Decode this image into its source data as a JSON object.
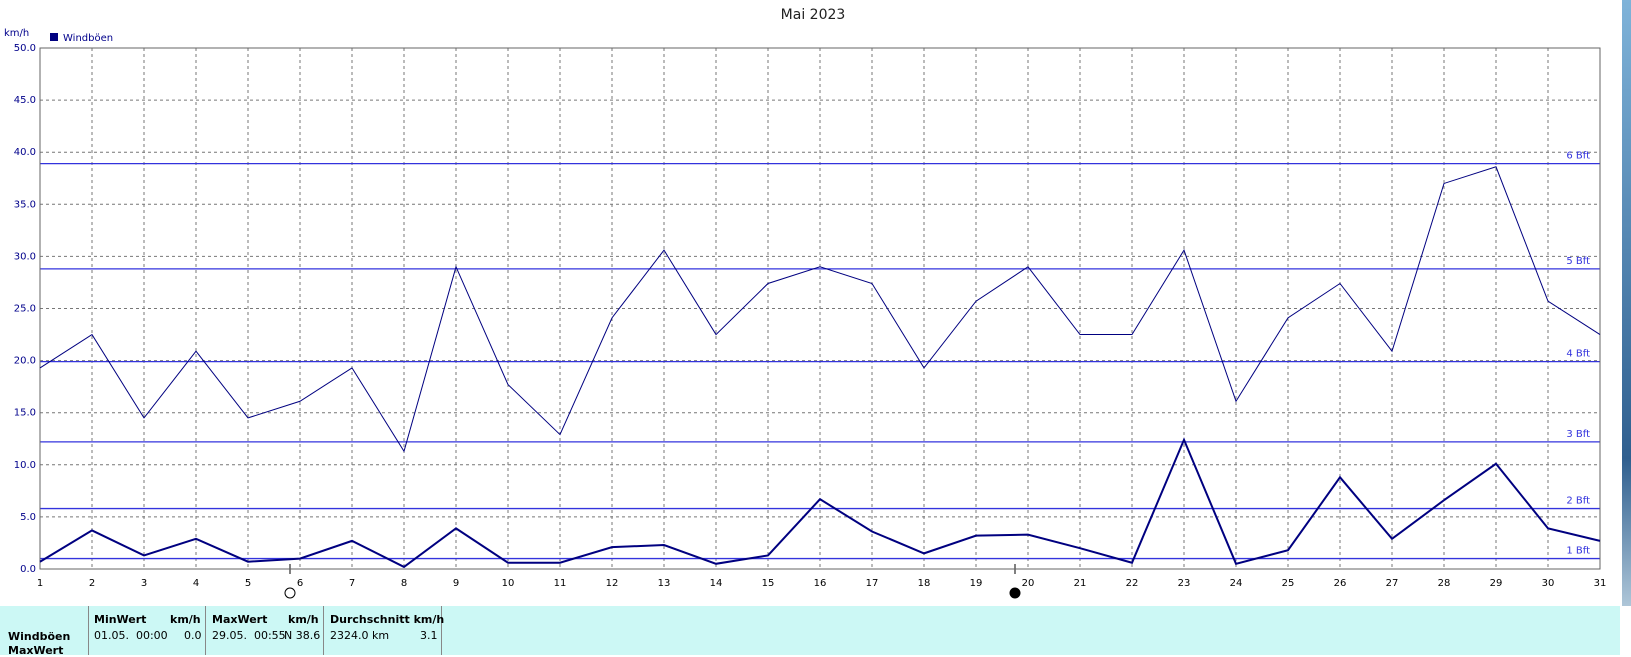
{
  "chart_data": {
    "type": "line",
    "title": "Mai 2023",
    "y_label": "km/h",
    "x": [
      1,
      2,
      3,
      4,
      5,
      6,
      7,
      8,
      9,
      10,
      11,
      12,
      13,
      14,
      15,
      16,
      17,
      18,
      19,
      20,
      21,
      22,
      23,
      24,
      25,
      26,
      27,
      28,
      29,
      30,
      31
    ],
    "xlim": [
      1,
      31
    ],
    "xticks": [
      1,
      2,
      3,
      4,
      5,
      6,
      7,
      8,
      9,
      10,
      11,
      12,
      13,
      14,
      15,
      16,
      17,
      18,
      19,
      20,
      21,
      22,
      23,
      24,
      25,
      26,
      27,
      28,
      29,
      30,
      31
    ],
    "ylim": [
      0,
      50
    ],
    "yticks": [
      {
        "value": 0,
        "label": "0.0"
      },
      {
        "value": 5,
        "label": "5.0"
      },
      {
        "value": 10,
        "label": "10.0"
      },
      {
        "value": 15,
        "label": "15.0"
      },
      {
        "value": 20,
        "label": "20.0"
      },
      {
        "value": 25,
        "label": "25.0"
      },
      {
        "value": 30,
        "label": "30.0"
      },
      {
        "value": 35,
        "label": "35.0"
      },
      {
        "value": 40,
        "label": "40.0"
      },
      {
        "value": 45,
        "label": "45.0"
      },
      {
        "value": 50,
        "label": "50.0"
      }
    ],
    "grid": true,
    "legend": "top-left",
    "series": [
      {
        "name": "Windböen",
        "color": "#000080",
        "line_width": 2,
        "values": [
          0.7,
          3.7,
          1.3,
          2.9,
          0.7,
          1.0,
          2.7,
          0.2,
          3.9,
          0.6,
          0.6,
          2.1,
          2.3,
          0.5,
          1.3,
          6.7,
          3.6,
          1.5,
          3.2,
          3.3,
          2.0,
          0.6,
          12.4,
          0.5,
          1.8,
          8.8,
          2.9,
          6.6,
          10.1,
          3.9,
          2.7
        ]
      },
      {
        "name": "MaxWert",
        "color": "#000080",
        "line_width": 1,
        "values": [
          19.3,
          22.5,
          14.5,
          20.9,
          14.5,
          16.1,
          19.3,
          11.3,
          29.0,
          17.7,
          12.9,
          24.1,
          30.6,
          22.5,
          27.4,
          29.0,
          27.4,
          19.3,
          25.7,
          29.0,
          22.5,
          22.5,
          30.6,
          16.1,
          24.1,
          27.4,
          20.9,
          37.0,
          38.6,
          25.7,
          22.5
        ]
      }
    ],
    "ref_color": "#3333dd",
    "ref_lines": [
      {
        "value": 1.0,
        "label": "1 Bft"
      },
      {
        "value": 5.8,
        "label": "2 Bft"
      },
      {
        "value": 12.2,
        "label": "3 Bft"
      },
      {
        "value": 19.9,
        "label": "4 Bft"
      },
      {
        "value": 28.8,
        "label": "5 Bft"
      },
      {
        "value": 38.9,
        "label": "6 Bft"
      }
    ]
  },
  "table": {
    "header": [
      "MinWert",
      "km/h",
      "MaxWert",
      "km/h",
      "Durchschnitt km/h"
    ],
    "row": [
      "01.05.  00:00",
      "0.0",
      "29.05.  00:55",
      "N 38.6",
      "2324.0 km",
      "3.1"
    ]
  }
}
